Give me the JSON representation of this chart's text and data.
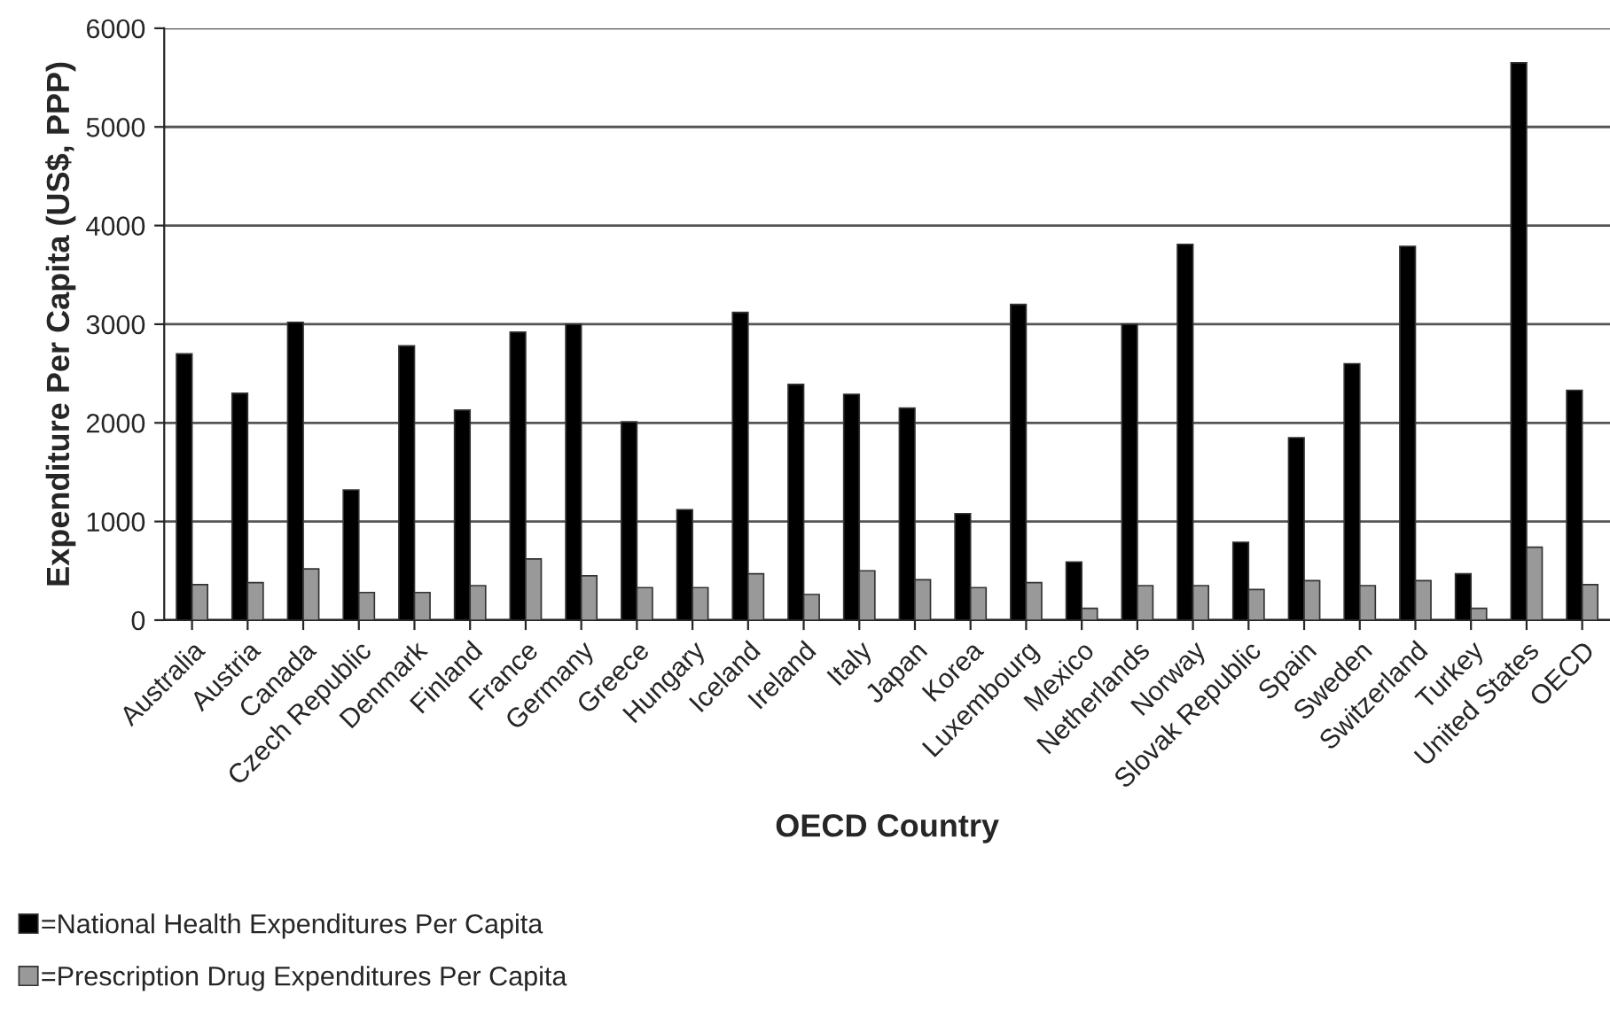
{
  "chart_data": {
    "type": "bar",
    "xlabel": "OECD Country",
    "ylabel": "Expenditure Per Capita (US$, PPP)",
    "categories": [
      "Australia",
      "Austria",
      "Canada",
      "Czech Republic",
      "Denmark",
      "Finland",
      "France",
      "Germany",
      "Greece",
      "Hungary",
      "Iceland",
      "Ireland",
      "Italy",
      "Japan",
      "Korea",
      "Luxembourg",
      "Mexico",
      "Netherlands",
      "Norway",
      "Slovak Republic",
      "Spain",
      "Sweden",
      "Switzerland",
      "Turkey",
      "United States",
      "OECD"
    ],
    "series": [
      {
        "name": "=National Health Expenditures Per Capita",
        "color": "#000000",
        "values": [
          2700,
          2300,
          3020,
          1320,
          2780,
          2130,
          2920,
          3000,
          2010,
          1120,
          3120,
          2390,
          2290,
          2150,
          1080,
          3200,
          590,
          3000,
          3810,
          790,
          1850,
          2600,
          3790,
          470,
          5650,
          2330
        ]
      },
      {
        "name": "=Prescription Drug Expenditures Per Capita",
        "color": "#999999",
        "values": [
          360,
          380,
          520,
          280,
          280,
          350,
          620,
          450,
          330,
          330,
          470,
          260,
          500,
          410,
          330,
          380,
          120,
          350,
          350,
          310,
          400,
          350,
          400,
          120,
          740,
          360
        ]
      }
    ],
    "ylim": [
      0,
      6000
    ],
    "yticks": [
      0,
      1000,
      2000,
      3000,
      4000,
      5000,
      6000
    ],
    "grid": "y",
    "legend": "bottom left"
  }
}
